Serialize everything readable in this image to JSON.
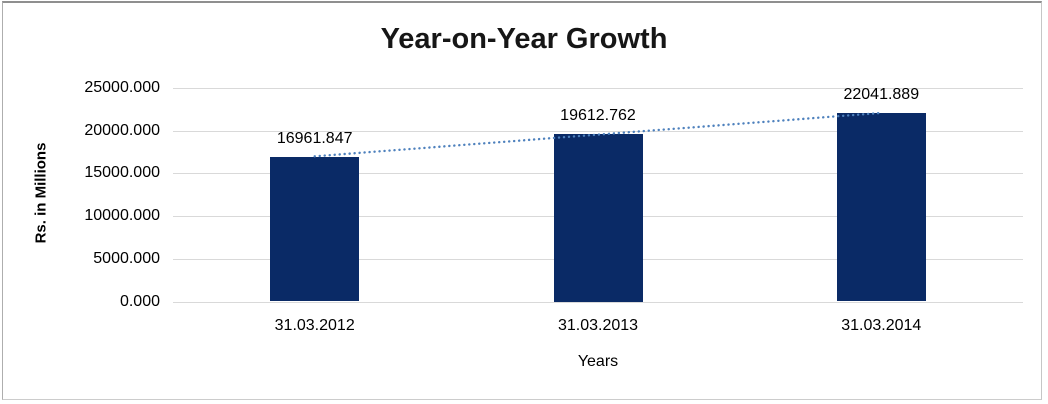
{
  "chart_data": {
    "type": "bar",
    "title": "Year-on-Year Growth",
    "xlabel": "Years",
    "ylabel": "Rs. in Millions",
    "categories": [
      "31.03.2012",
      "31.03.2013",
      "31.03.2014"
    ],
    "values": [
      16961.847,
      19612.762,
      22041.889
    ],
    "data_labels": [
      "16961.847",
      "19612.762",
      "22041.889"
    ],
    "ytick_labels": [
      "25000.000",
      "20000.000",
      "15000.000",
      "10000.000",
      "5000.000",
      "0.000"
    ],
    "ylim": [
      0,
      25000
    ],
    "grid": true,
    "legend": false,
    "bar_color": "#0a2a66",
    "gridline_color": "#d9d9d9",
    "title_color": "#161616",
    "trendline": {
      "type": "linear",
      "style": "dotted",
      "color": "#4e81bd"
    }
  }
}
